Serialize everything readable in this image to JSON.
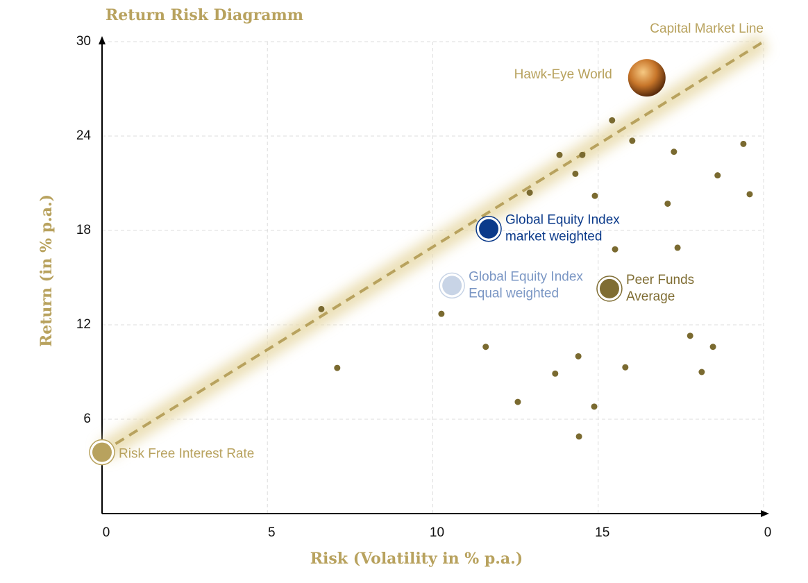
{
  "chart_data": {
    "type": "scatter",
    "title": "Return Risk Diagramm",
    "x_label": "Risk (Volatility in % p.a.)",
    "y_label": "Return (in % p.a.)",
    "xlim": [
      0,
      20
    ],
    "ylim": [
      0,
      30
    ],
    "xticks": [
      0,
      5,
      10,
      15,
      {
        "value": 20,
        "label": "0"
      }
    ],
    "yticks": [
      6,
      12,
      18,
      24,
      30
    ],
    "grid": true,
    "color": "#7a6a30",
    "x": [
      6.63,
      7.11,
      10.26,
      11.6,
      12.57,
      12.93,
      13.7,
      13.83,
      14.31,
      14.4,
      14.42,
      14.52,
      14.88,
      14.9,
      15.42,
      15.51,
      15.82,
      16.03,
      17.1,
      17.29,
      17.4,
      17.78,
      18.13,
      18.47,
      18.61,
      19.39,
      19.58
    ],
    "y": [
      13.0,
      9.26,
      12.7,
      10.6,
      7.1,
      20.4,
      8.9,
      22.8,
      21.6,
      10.0,
      4.9,
      22.8,
      6.8,
      20.2,
      25.0,
      16.8,
      9.3,
      23.7,
      19.7,
      23.0,
      16.9,
      11.3,
      9.0,
      10.6,
      21.5,
      23.5,
      20.3
    ],
    "line": {
      "label": "Capital Market Line",
      "x": [
        0,
        20
      ],
      "y": [
        3.9,
        30
      ],
      "color": "#b8a25e"
    },
    "highlights": [
      {
        "label": [
          "Risk Free Interest Rate"
        ],
        "x": 0,
        "y": 3.9,
        "color": "#b8a25e",
        "label_color": "#b8a25e"
      },
      {
        "label": [
          "Global Equity Index",
          "market weighted"
        ],
        "x": 11.69,
        "y": 18.1,
        "color": "#0b3a8a",
        "label_color": "#0b3a8a"
      },
      {
        "label": [
          "Global Equity Index",
          "Equal weighted"
        ],
        "x": 10.58,
        "y": 14.5,
        "color": "#c8d4e6",
        "label_color": "#7a96c4"
      },
      {
        "label": [
          "Peer Funds",
          "Average"
        ],
        "x": 15.34,
        "y": 14.3,
        "color": "#7f6d33",
        "label_color": "#7f6d33"
      },
      {
        "label": [
          "Hawk-Eye World"
        ],
        "x": 16.47,
        "y": 27.7,
        "color": "#c8762a",
        "label_color": "#b8a25e"
      }
    ]
  }
}
